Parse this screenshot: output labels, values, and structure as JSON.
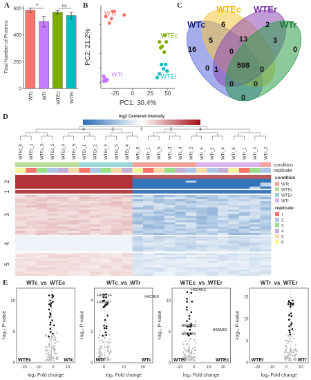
{
  "panels": {
    "A": {
      "label": "A",
      "chart_data": {
        "type": "bar",
        "categories": [
          "WTc",
          "WTr",
          "WTEc",
          "WTEr"
        ],
        "values": [
          585,
          500,
          570,
          545
        ],
        "errors": [
          15,
          40,
          12,
          25
        ],
        "colors": [
          "#f8766d",
          "#c77cff",
          "#7cae00",
          "#00bfc4"
        ],
        "ylabel": "Total Number of Proteins",
        "ylim": [
          0,
          620
        ],
        "yticks": [
          0,
          200,
          400,
          600
        ],
        "annotations": [
          "*",
          "ns"
        ]
      }
    },
    "B": {
      "label": "B",
      "chart_data": {
        "type": "scatter",
        "xlabel": "PC1: 30.4%",
        "ylabel": "PC2: 21.2%",
        "xticks": [
          -25,
          0,
          25,
          50
        ],
        "yticks": [
          -40,
          -20,
          0,
          20,
          40,
          60
        ],
        "xlim": [
          -45,
          60
        ],
        "ylim": [
          -48,
          66
        ],
        "series": [
          {
            "name": "WTc",
            "color": "#f8766d",
            "points": [
              [
                -38,
                51
              ],
              [
                -30,
                48
              ],
              [
                -28,
                58
              ],
              [
                -26,
                58
              ],
              [
                -33,
                42
              ],
              [
                -12,
                53
              ]
            ],
            "label_at": [
              -40,
              52
            ]
          },
          {
            "name": "WTEc",
            "color": "#7cae00",
            "points": [
              [
                38,
                16
              ],
              [
                42,
                10
              ],
              [
                46,
                25
              ],
              [
                48,
                16
              ],
              [
                45,
                2
              ],
              [
                40,
                8
              ]
            ],
            "label_at": [
              40,
              22
            ]
          },
          {
            "name": "WTr",
            "color": "#c77cff",
            "points": [
              [
                -41,
                -31
              ],
              [
                -40,
                -34
              ],
              [
                -39,
                -37
              ],
              [
                -38,
                -38
              ],
              [
                -41,
                -38
              ],
              [
                -36,
                -36
              ]
            ],
            "label_at": [
              -30,
              -32
            ]
          },
          {
            "name": "WTEr",
            "color": "#00bfc4",
            "points": [
              [
                35,
                -33
              ],
              [
                38,
                -28
              ],
              [
                41,
                -15
              ],
              [
                44,
                -21
              ],
              [
                47,
                -15
              ],
              [
                49,
                -24
              ]
            ],
            "label_at": [
              40,
              -34
            ]
          }
        ]
      }
    },
    "C": {
      "label": "C",
      "sets": [
        {
          "name": "WTc",
          "color": "#5b6bd8"
        },
        {
          "name": "WTEc",
          "color": "#f5c542"
        },
        {
          "name": "WTEr",
          "color": "#8e4bb6"
        },
        {
          "name": "WTr",
          "color": "#2e9e4a"
        }
      ],
      "counts": [
        "16",
        "6",
        "2",
        "0",
        "5",
        "13",
        "3",
        "0",
        "0",
        "1",
        "598",
        "0",
        "0",
        "0",
        "0"
      ]
    },
    "D": {
      "label": "D",
      "colorbar_title": "log2 Centered intensity",
      "colorbar_ticks": [
        "-4",
        "-2",
        "0",
        "2",
        "4"
      ],
      "columns": [
        "WTEc_6",
        "WTEc_1",
        "WTEc_3",
        "WTEc_2",
        "WTEc_4",
        "WTEc_5",
        "WTEr_1",
        "WTEr_2",
        "WTEr_3",
        "WTEr_5",
        "WTEr_4",
        "WTc_6",
        "WTc_1",
        "WTc_5",
        "WTc_3",
        "WTc_4",
        "WTr_2",
        "WTc_2",
        "WTr_5",
        "WTr_6",
        "WTr_4",
        "WTr_3",
        "WTr_1",
        "WTr_2b"
      ],
      "column_display": [
        "WTEc_6",
        "WTEc_1",
        "WTEc_3",
        "WTEc_2",
        "WTEc_4",
        "WTEc_5",
        "WTEr_1",
        "WTEr_2",
        "WTEr_3",
        "WTEr_5",
        "WTEr_4",
        "WTc_6",
        "WTc_1",
        "WTc_5",
        "WTc_3",
        "WTc_4",
        "WTc_2",
        "WTr_5",
        "WTr_2",
        "WTr_4",
        "WTr_6",
        "WTr_1",
        "WTr_3",
        "WTc_2"
      ],
      "row_clusters": [
        "2",
        "1",
        "3",
        "4",
        "5"
      ],
      "annotation_titles": {
        "condition": "condition",
        "replicate": "replicate"
      },
      "legend": {
        "condition_title": "condition",
        "condition_items": [
          {
            "name": "WTc",
            "color": "#f4a39c"
          },
          {
            "name": "WTEc",
            "color": "#b9dd99"
          },
          {
            "name": "WTEr",
            "color": "#9ad6d8"
          },
          {
            "name": "WTr",
            "color": "#d9b3f0"
          }
        ],
        "replicate_title": "replicate",
        "replicate_items": [
          {
            "name": "1",
            "color": "#f8766d"
          },
          {
            "name": "2",
            "color": "#aec7e8"
          },
          {
            "name": "3",
            "color": "#98df8a"
          },
          {
            "name": "4",
            "color": "#c5b0d5"
          },
          {
            "name": "5",
            "color": "#ffd8a8"
          },
          {
            "name": "6",
            "color": "#fff59d"
          }
        ]
      }
    },
    "E": {
      "label": "E",
      "xlabel": "log₂ Fold change",
      "ylabel": "-log₁₀ P-value",
      "plots": [
        {
          "title": "WTc_vs_WTEc",
          "left_tag": "WTEc",
          "right_tag": "WTc",
          "xticks": [
            "-20",
            "-10",
            "0",
            "10"
          ],
          "yticks": [
            "0",
            "5",
            "10"
          ],
          "labels": []
        },
        {
          "title": "WTc_vs_WTr",
          "left_tag": "WTr",
          "right_tag": "WTc",
          "xticks": [
            "0",
            "10",
            "20"
          ],
          "yticks": [
            "0",
            "2",
            "4"
          ],
          "labels": [
            "H6BQ14",
            "H6BP97",
            "H6C9E8"
          ]
        },
        {
          "title": "WTEc_vs_WTEr",
          "left_tag": "WTEr",
          "right_tag": "WTEc",
          "xticks": [
            "-10",
            "0",
            "10",
            "20"
          ],
          "yticks": [
            "0",
            "5",
            "10"
          ],
          "labels": [
            "H6CAK3",
            "H6C2K3",
            "H6C5A9",
            "H6BM62"
          ]
        },
        {
          "title": "WTr_vs_WTEr",
          "left_tag": "WTEr",
          "right_tag": "WTr",
          "xticks": [
            "-20",
            "-10",
            "0",
            "10"
          ],
          "yticks": [
            "0",
            "5",
            "10",
            "15"
          ],
          "labels": []
        }
      ]
    }
  }
}
